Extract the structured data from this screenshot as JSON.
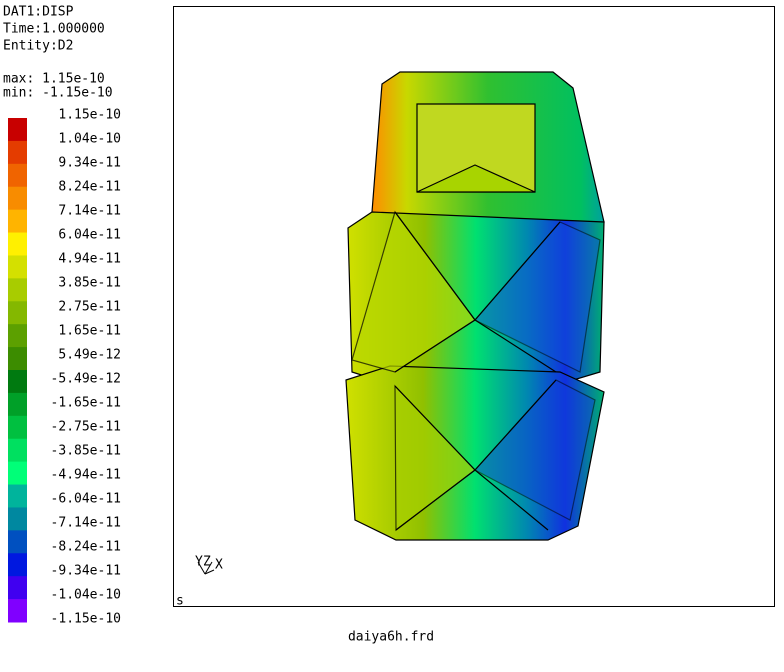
{
  "header": {
    "dataset": "DAT1:DISP",
    "time": "Time:1.000000",
    "entity": "Entity:D2",
    "max": "max: 1.15e-10",
    "min": "min: -1.15e-10"
  },
  "legend": {
    "labels": [
      "1.15e-10",
      "1.04e-10",
      "9.34e-11",
      "8.24e-11",
      "7.14e-11",
      "6.04e-11",
      "4.94e-11",
      "3.85e-11",
      "2.75e-11",
      "1.65e-11",
      "5.49e-12",
      "-5.49e-12",
      "-1.65e-11",
      "-2.75e-11",
      "-3.85e-11",
      "-4.94e-11",
      "-6.04e-11",
      "-7.14e-11",
      "-8.24e-11",
      "-9.34e-11",
      "-1.04e-10",
      "-1.15e-10"
    ],
    "colors": [
      "#c80000",
      "#e43c00",
      "#f06400",
      "#f88c00",
      "#ffb400",
      "#fff000",
      "#d4e000",
      "#a8cc00",
      "#84b800",
      "#5ca000",
      "#3c8c00",
      "#007a10",
      "#00a028",
      "#00c040",
      "#00e060",
      "#00ff78",
      "#00b49c",
      "#0088a0",
      "#0050c0",
      "#0018e0",
      "#4000f0",
      "#8000ff"
    ]
  },
  "viewport": {
    "triad": [
      "Y",
      "Z",
      "X"
    ],
    "corner_label": "s"
  },
  "footer": {
    "filename": "daiya6h.frd"
  }
}
